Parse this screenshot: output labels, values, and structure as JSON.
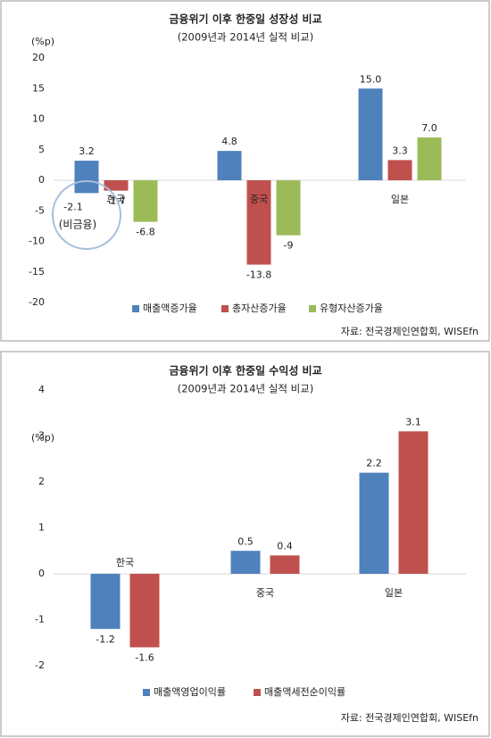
{
  "chart_data": [
    {
      "type": "bar",
      "title": "금융위기 이후 한중일 성장성 비교",
      "subtitle": "(2009년과 2014년 실적 비교)",
      "unit_label": "(%p)",
      "categories": [
        "한국",
        "중국",
        "일본"
      ],
      "series": [
        {
          "name": "매출액증가율",
          "color": "#4f81bd",
          "values": [
            3.2,
            4.8,
            15.0
          ],
          "value_labels": [
            "3.2",
            "4.8",
            "15.0"
          ]
        },
        {
          "name": "총자산증가율",
          "color": "#c0504d",
          "values": [
            -1.7,
            -13.8,
            3.3
          ]
        },
        {
          "name": "유형자산증가율",
          "color": "#9bbb59",
          "values": [
            -6.8,
            -9,
            7.0
          ],
          "value_labels": [
            "-6.8",
            "-9",
            "7.0"
          ]
        }
      ],
      "annotation": {
        "value": -2.1,
        "label": "-2.1",
        "note": "(비금융)"
      },
      "ylim": [
        -20,
        20
      ],
      "yticks": [
        -20,
        -15,
        -10,
        -5,
        0,
        5,
        10,
        15,
        20
      ],
      "source": "자료: 전국경제인연합회, WISEfn"
    },
    {
      "type": "bar",
      "title": "금융위기 이후 한중일 수익성 비교",
      "subtitle": "(2009년과 2014년 실적 비교)",
      "unit_label": "(%p)",
      "categories": [
        "한국",
        "중국",
        "일본"
      ],
      "series": [
        {
          "name": "매출액영업이익률",
          "color": "#4f81bd",
          "values": [
            -1.2,
            0.5,
            2.2
          ]
        },
        {
          "name": "매출액세전순이익률",
          "color": "#c0504d",
          "values": [
            -1.6,
            0.4,
            3.1
          ]
        }
      ],
      "ylim": [
        -2,
        4
      ],
      "yticks": [
        -2,
        -1,
        0,
        1,
        2,
        3,
        4
      ],
      "source": "자료: 전국경제인연합회, WISEfn"
    }
  ]
}
